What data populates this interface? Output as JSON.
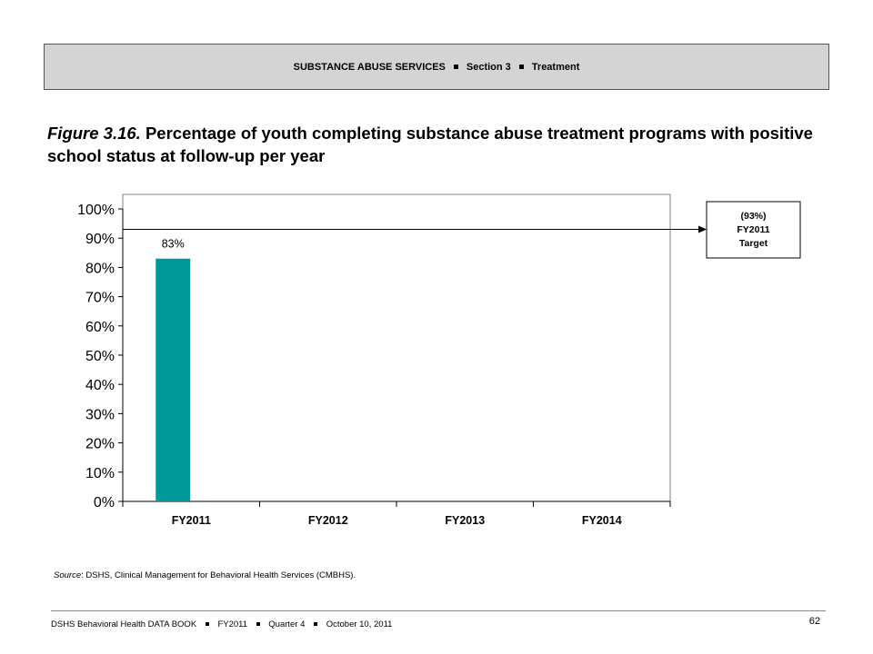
{
  "header": {
    "section": "SUBSTANCE ABUSE SERVICES",
    "part": "Section 3",
    "topic": "Treatment"
  },
  "figure": {
    "number": "Figure 3.16.",
    "title": "Percentage of youth completing substance abuse treatment programs with positive school status at follow-up per year"
  },
  "chart_data": {
    "type": "bar",
    "categories": [
      "FY2011",
      "FY2012",
      "FY2013",
      "FY2014"
    ],
    "values": [
      83,
      null,
      null,
      null
    ],
    "data_labels": [
      "83%",
      "",
      "",
      ""
    ],
    "ylim": [
      0,
      100
    ],
    "yticks": [
      "0%",
      "10%",
      "20%",
      "30%",
      "40%",
      "50%",
      "60%",
      "70%",
      "80%",
      "90%",
      "100%"
    ],
    "xlabel": "",
    "ylabel": "",
    "target": {
      "value": 93,
      "label_lines": [
        "(93%)",
        "FY2011",
        "Target"
      ]
    },
    "bar_color": "#009999",
    "grid": false
  },
  "source": {
    "label": "Source",
    "text": ": DSHS, Clinical Management for Behavioral Health Services (CMBHS)."
  },
  "footer": {
    "book": "DSHS Behavioral Health DATA BOOK",
    "fy": "FY2011",
    "quarter": "Quarter 4",
    "date": "October 10, 2011",
    "page": "62"
  }
}
